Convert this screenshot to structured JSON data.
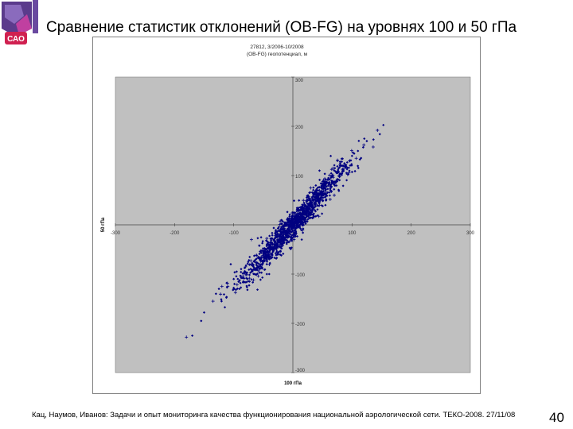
{
  "slide": {
    "title": "Сравнение статистик отклонений (OB-FG) на уровнях 100 и 50 гПа",
    "footer": "Кац, Наумов, Иванов: Задачи и опыт мониторинга качества функционирования национальной аэрологической сети. ТЕКО-2008. 27/11/08",
    "page_number": "40",
    "logo_text": "САО"
  },
  "colors": {
    "plot_bg": "#c0c0c0",
    "marker": "#000080",
    "accent_logo": "#4b2c7a"
  },
  "chart_data": {
    "type": "scatter",
    "title_lines": [
      "27812, 3/2006-10/2008",
      "(OB-FG) геопотенциал, м"
    ],
    "xlabel": "100 гПа",
    "ylabel": "50 гПа",
    "xlim": [
      -300,
      300
    ],
    "ylim": [
      -300,
      300
    ],
    "xticks": [
      "-300",
      "-200",
      "-100",
      "0",
      "100",
      "200",
      "300"
    ],
    "yticks": [
      "300",
      "200",
      "100",
      "0",
      "-100",
      "-200",
      "-300"
    ],
    "grid": false,
    "legend": "none",
    "trend_slope": 1.3,
    "highlighted_points": [
      {
        "x": 143,
        "y": 192
      },
      {
        "x": 147,
        "y": 184
      },
      {
        "x": 125,
        "y": 170
      },
      {
        "x": 120,
        "y": 162
      },
      {
        "x": 110,
        "y": 150
      },
      {
        "x": 100,
        "y": 140
      },
      {
        "x": 96,
        "y": 130
      },
      {
        "x": 85,
        "y": 120
      },
      {
        "x": -155,
        "y": -195
      },
      {
        "x": -180,
        "y": -228
      },
      {
        "x": -170,
        "y": -225
      },
      {
        "x": -130,
        "y": -140
      },
      {
        "x": -120,
        "y": -125
      },
      {
        "x": -100,
        "y": -110
      },
      {
        "x": -95,
        "y": -95
      },
      {
        "x": -135,
        "y": -155
      },
      {
        "x": -150,
        "y": -178
      },
      {
        "x": -125,
        "y": -130
      },
      {
        "x": -110,
        "y": -125
      },
      {
        "x": -105,
        "y": -80
      },
      {
        "x": 60,
        "y": 95
      },
      {
        "x": 70,
        "y": 60
      },
      {
        "x": 55,
        "y": 40
      },
      {
        "x": 45,
        "y": 110
      },
      {
        "x": 30,
        "y": 75
      },
      {
        "x": -25,
        "y": -60
      },
      {
        "x": 15,
        "y": -30
      },
      {
        "x": -70,
        "y": -30
      },
      {
        "x": 35,
        "y": 15
      },
      {
        "x": -40,
        "y": -100
      }
    ],
    "cloud": {
      "count": 1400,
      "x_spread": 45,
      "y_noise": 14,
      "slope": 1.3,
      "seed": 27812
    }
  }
}
